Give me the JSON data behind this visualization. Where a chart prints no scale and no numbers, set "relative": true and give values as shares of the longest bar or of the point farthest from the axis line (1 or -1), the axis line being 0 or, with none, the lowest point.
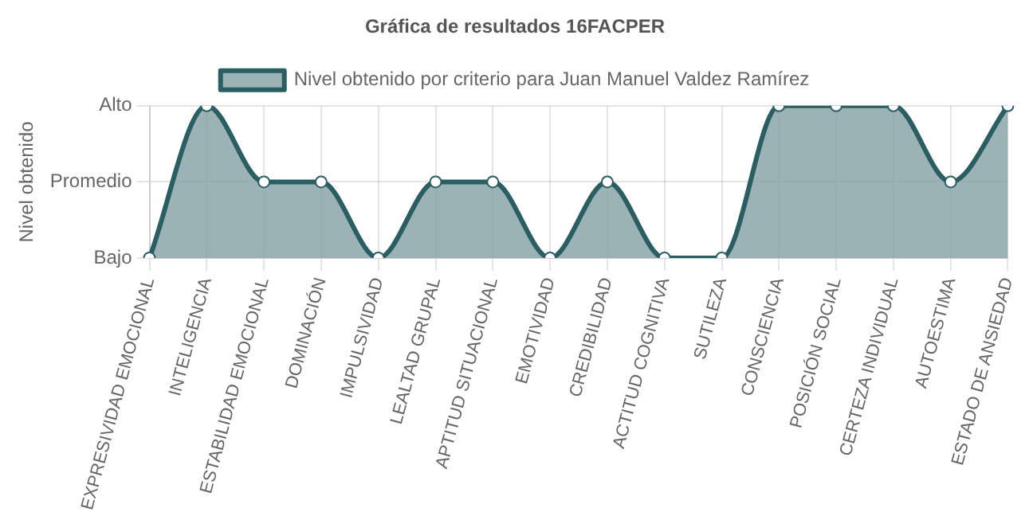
{
  "chart_data": {
    "type": "area",
    "title": "Gráfica de resultados 16FACPER",
    "ylabel": "Nivel obtenido",
    "categories": [
      "EXPRESIVIDAD EMOCIONAL",
      "INTELIGENCIA",
      "ESTABILIDAD EMOCIONAL",
      "DOMINACIÓN",
      "IMPULSIVIDAD",
      "LEALTAD GRUPAL",
      "APTITUD SITUACIONAL",
      "EMOTIVIDAD",
      "CREDIBILIDAD",
      "ACTITUD COGNITIVA",
      "SUTILEZA",
      "CONSCIENCIA",
      "POSICIÓN SOCIAL",
      "CERTEZA INDIVIDUAL",
      "AUTOESTIMA",
      "ESTADO DE ANSIEDAD"
    ],
    "series": [
      {
        "name": "Nivel obtenido por criterio para Juan Manuel Valdez Ramírez",
        "color": "#2b5e63",
        "values": [
          0,
          1,
          0.5,
          0.5,
          0,
          0.5,
          0.5,
          0,
          0.5,
          0,
          0,
          1,
          1,
          1,
          0.5,
          1
        ]
      }
    ],
    "relative": true,
    "y_categories": [
      "Alto",
      "Promedio",
      "Bajo"
    ],
    "grid": true,
    "legend": "top",
    "marker": "circle"
  }
}
